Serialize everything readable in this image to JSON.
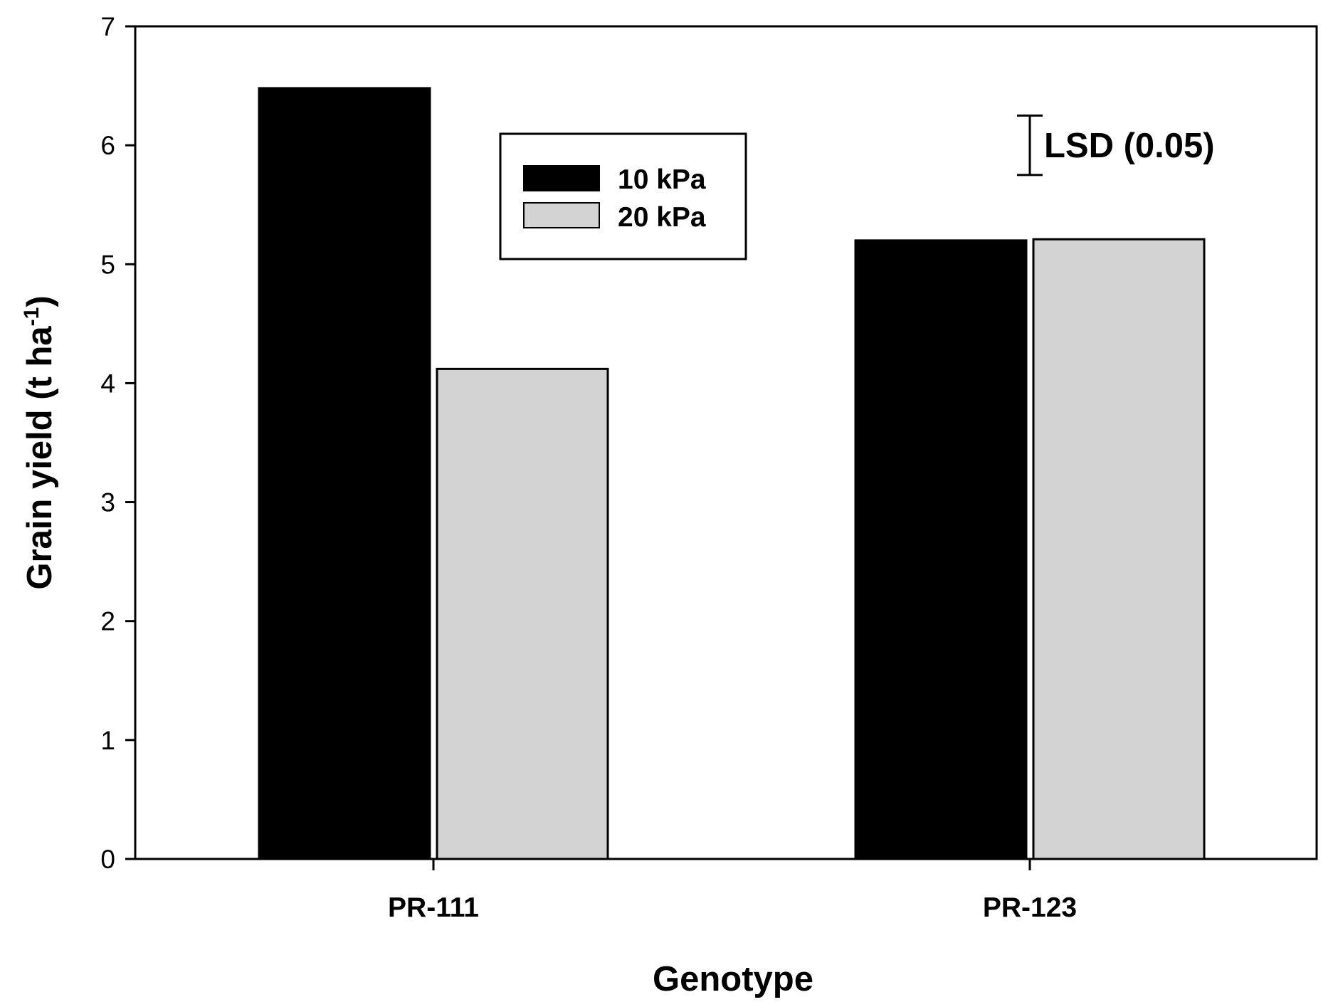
{
  "chart_data": {
    "type": "bar",
    "categories": [
      "PR-111",
      "PR-123"
    ],
    "series": [
      {
        "name": "10 kPa",
        "values": [
          6.48,
          5.2
        ],
        "color": "#000000"
      },
      {
        "name": "20 kPa",
        "values": [
          4.12,
          5.21
        ],
        "color": "#d3d3d3"
      }
    ],
    "xlabel": "Genotype",
    "ylabel": {
      "main": "Grain yield (t ha",
      "superscript": "-1",
      "close": ")"
    },
    "ylim": [
      0,
      7
    ],
    "yticks": [
      "0",
      "1",
      "2",
      "3",
      "4",
      "5",
      "6",
      "7"
    ],
    "legend": "upper-center, boxed",
    "grid": false,
    "annotation": {
      "text": "LSD (0.05)",
      "error_bar_center": 6.0,
      "error_bar_span": 0.5
    }
  }
}
